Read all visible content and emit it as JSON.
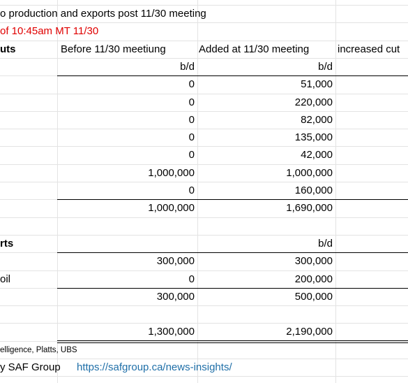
{
  "title": "o production and exports post 11/30 meeting",
  "subtitle": "of 10:45am MT 11/30",
  "table": {
    "section1": "uts",
    "columns": [
      "Before 11/30 meetiung",
      "Added at 11/30 meeting",
      "increased cut"
    ],
    "units": [
      "b/d",
      "b/d"
    ],
    "rows1": [
      {
        "before": "0",
        "added": "51,000"
      },
      {
        "before": "0",
        "added": "220,000"
      },
      {
        "before": "0",
        "added": "82,000"
      },
      {
        "before": "0",
        "added": "135,000"
      },
      {
        "before": "0",
        "added": "42,000"
      },
      {
        "before": "1,000,000",
        "added": "1,000,000"
      },
      {
        "before": "0",
        "added": "160,000"
      }
    ],
    "total1": {
      "before": "1,000,000",
      "added": "1,690,000"
    },
    "section2": "rts",
    "units2": "b/d",
    "rows2": [
      {
        "before": "300,000",
        "added": "300,000"
      },
      {
        "label": "oil",
        "before": "0",
        "added": "200,000"
      }
    ],
    "total2": {
      "before": "300,000",
      "added": "500,000"
    },
    "grand_total": {
      "before": "1,300,000",
      "added": "2,190,000"
    }
  },
  "footer": {
    "source": "elligence, Platts, UBS",
    "credit": "y SAF Group",
    "link": "https://safgroup.ca/news-insights/"
  }
}
